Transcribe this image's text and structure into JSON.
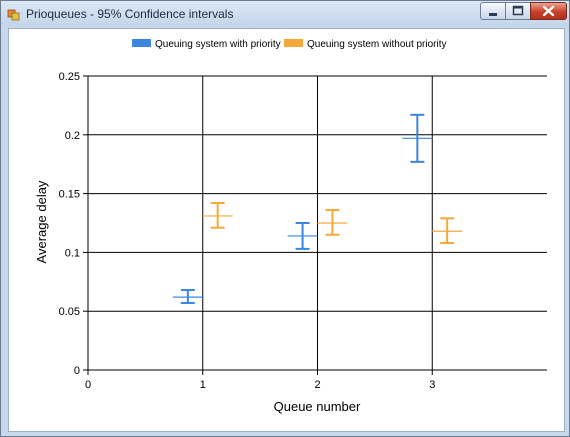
{
  "window": {
    "title": "Prioqueues - 95% Confidence intervals",
    "controls": {
      "minimize_icon": "minimize-icon",
      "maximize_icon": "maximize-icon",
      "close_icon": "close-icon"
    }
  },
  "colors": {
    "priority": "#3b86e0",
    "no_priority": "#f6a93b",
    "grid": "#000000"
  },
  "chart_data": {
    "type": "errorbar",
    "xlabel": "Queue number",
    "ylabel": "Average delay",
    "xlim": [
      0,
      4
    ],
    "ylim": [
      0,
      0.25
    ],
    "x_ticks": [
      0,
      1,
      2,
      3
    ],
    "y_ticks": [
      "0",
      "0.05",
      "0.1",
      "0.15",
      "0.2",
      "0.25"
    ],
    "grid": true,
    "legend_position": "top-center",
    "series": [
      {
        "name": "Queuing system with priority",
        "color": "#3b86e0",
        "points": [
          {
            "x": 0.87,
            "mean": 0.062,
            "low": 0.057,
            "high": 0.068
          },
          {
            "x": 1.87,
            "mean": 0.114,
            "low": 0.103,
            "high": 0.125
          },
          {
            "x": 2.87,
            "mean": 0.197,
            "low": 0.177,
            "high": 0.217
          }
        ]
      },
      {
        "name": "Queuing system without priority",
        "color": "#f6a93b",
        "points": [
          {
            "x": 1.13,
            "mean": 0.131,
            "low": 0.121,
            "high": 0.142
          },
          {
            "x": 2.13,
            "mean": 0.125,
            "low": 0.115,
            "high": 0.136
          },
          {
            "x": 3.13,
            "mean": 0.118,
            "low": 0.108,
            "high": 0.129
          }
        ]
      }
    ]
  }
}
